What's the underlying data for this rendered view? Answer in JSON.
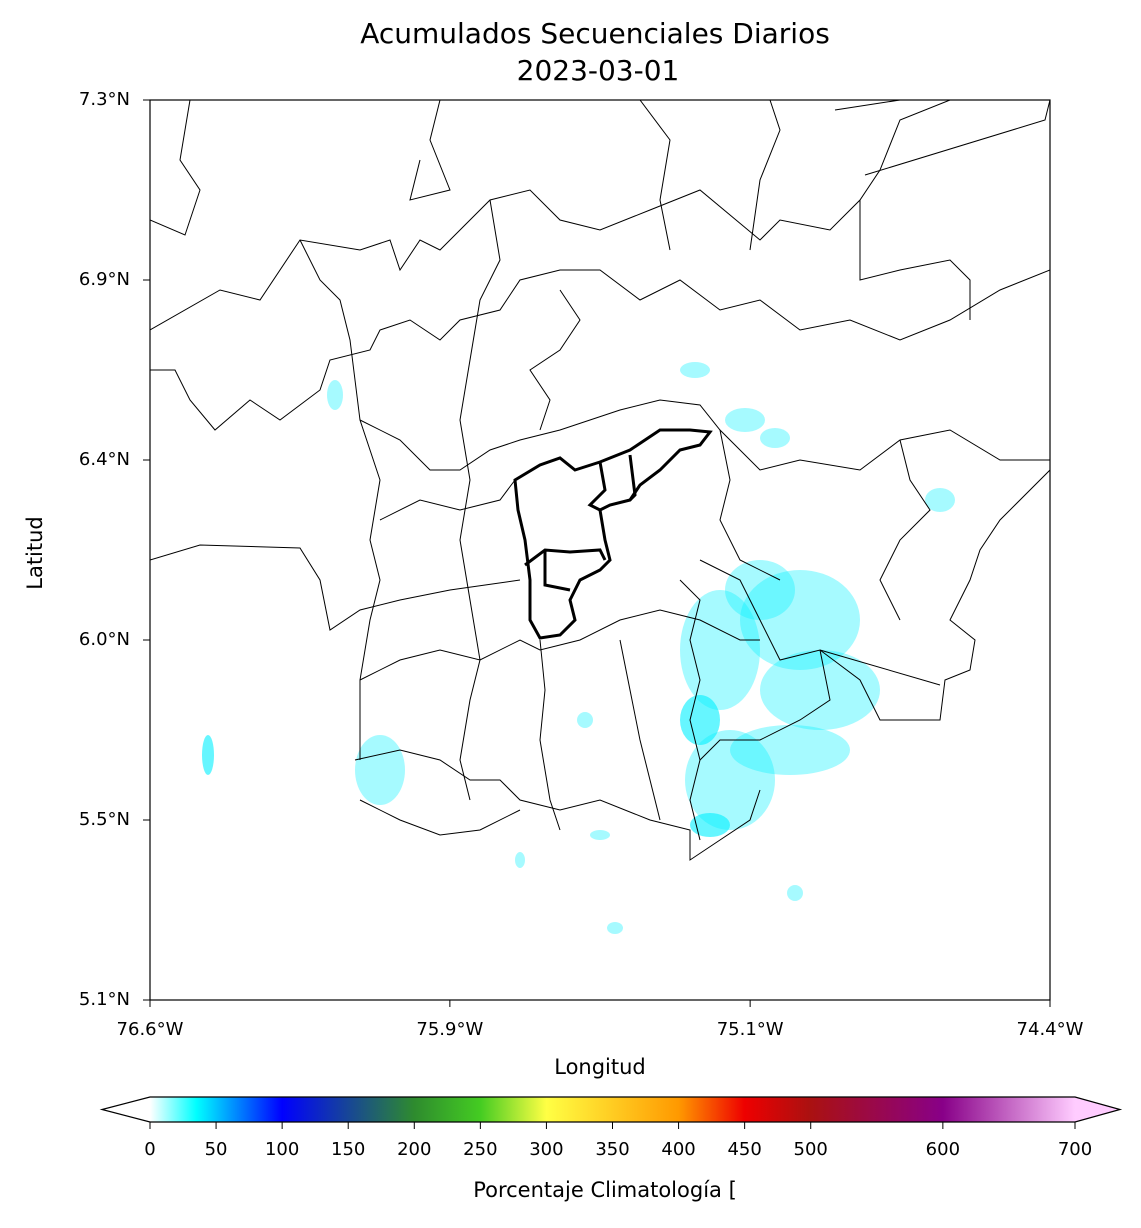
{
  "map": {
    "title": "Acumulados Secuenciales Diarios",
    "subtitle": "2023-03-01",
    "xlabel": "Longitud",
    "ylabel": "Latitud",
    "xlim": [
      -76.6,
      -74.4
    ],
    "ylim": [
      5.1,
      7.3
    ],
    "xticks": [
      {
        "value": -76.6,
        "label": "76.6°W"
      },
      {
        "value": -75.867,
        "label": "75.9°W"
      },
      {
        "value": -75.133,
        "label": "75.1°W"
      },
      {
        "value": -74.4,
        "label": "74.4°W"
      }
    ],
    "yticks": [
      {
        "value": 5.1,
        "label": "5.1°N"
      },
      {
        "value": 5.54,
        "label": "5.5°N"
      },
      {
        "value": 5.98,
        "label": "6.0°N"
      },
      {
        "value": 6.42,
        "label": "6.4°N"
      },
      {
        "value": 6.86,
        "label": "6.9°N"
      },
      {
        "value": 7.3,
        "label": "7.3°N"
      }
    ],
    "colorbar": {
      "label": "Porcentaje Climatología [",
      "lim": [
        0,
        700
      ],
      "ticks": [
        0,
        50,
        100,
        150,
        200,
        250,
        300,
        350,
        400,
        450,
        500,
        600,
        700
      ],
      "under_color": "#ffffff",
      "over_color": "#ffccff",
      "colormap": [
        {
          "value": 0,
          "color": "#ffffff"
        },
        {
          "value": 35,
          "color": "#00ffff"
        },
        {
          "value": 100,
          "color": "#0000ff"
        },
        {
          "value": 200,
          "color": "#2e8b2e"
        },
        {
          "value": 250,
          "color": "#44cc22"
        },
        {
          "value": 300,
          "color": "#ffff44"
        },
        {
          "value": 400,
          "color": "#ff9900"
        },
        {
          "value": 450,
          "color": "#ee0000"
        },
        {
          "value": 500,
          "color": "#aa1111"
        },
        {
          "value": 600,
          "color": "#880088"
        },
        {
          "value": 700,
          "color": "#ffccff"
        }
      ]
    }
  }
}
